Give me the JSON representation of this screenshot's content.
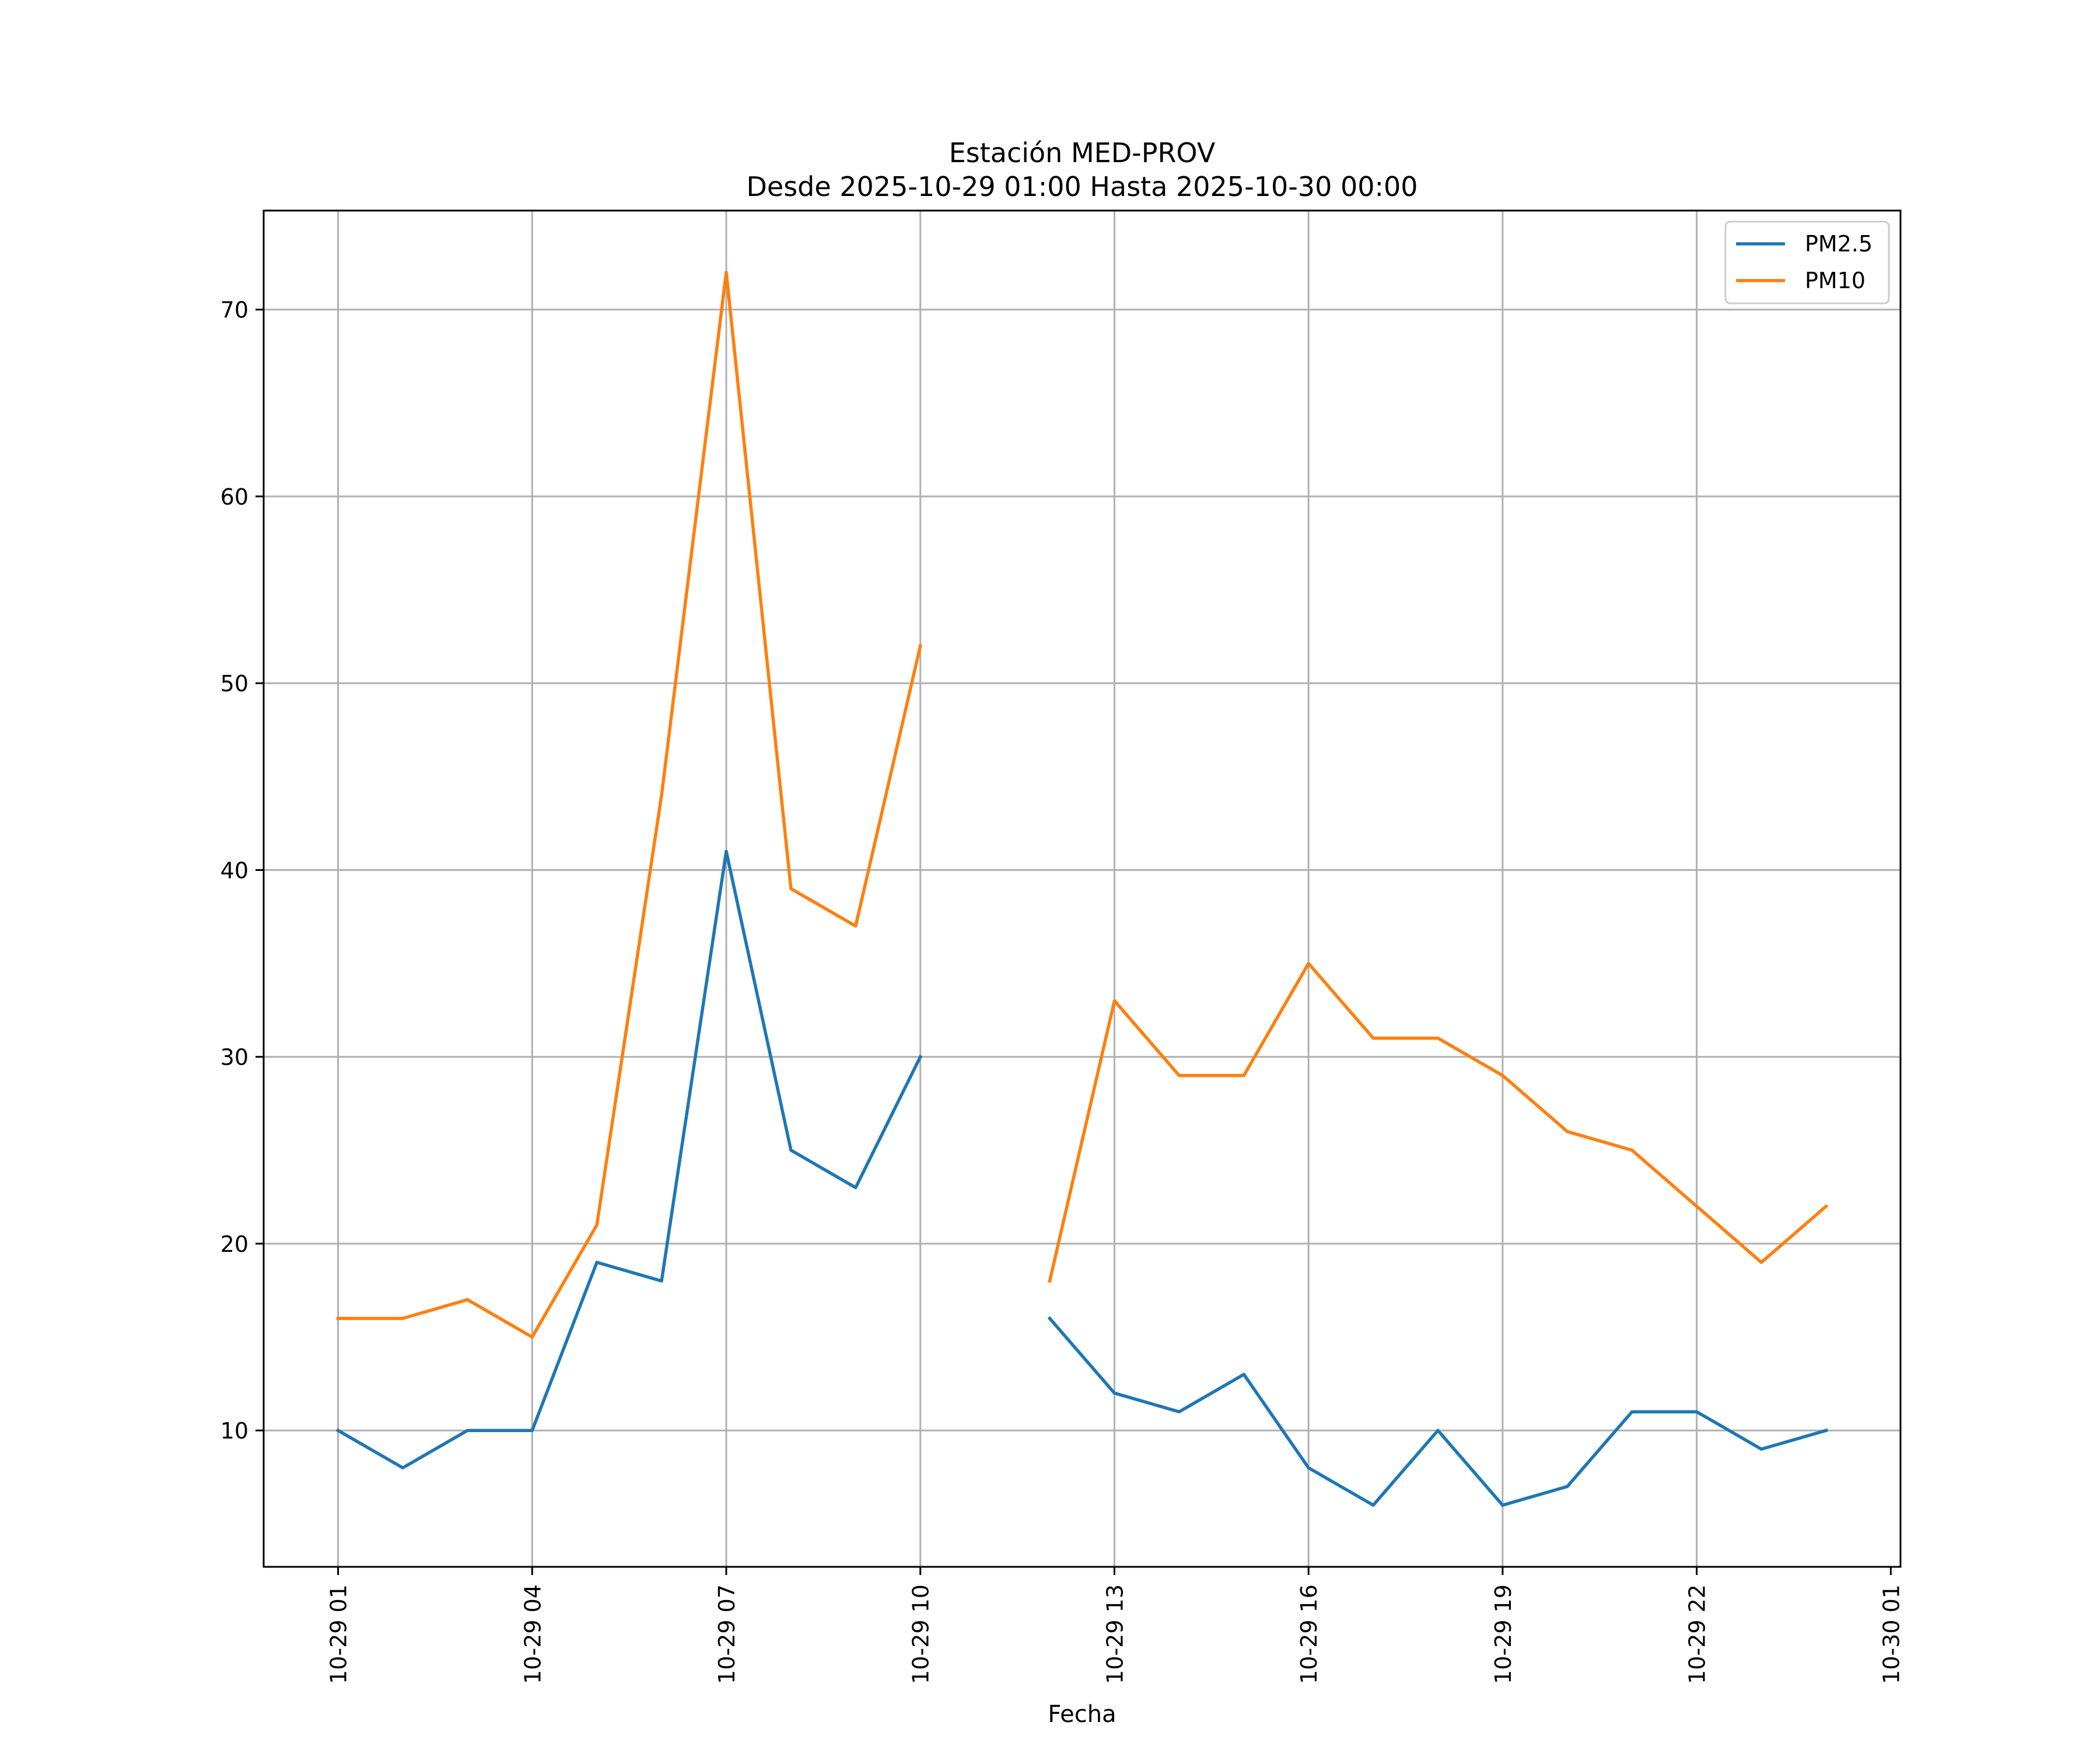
{
  "chart_data": {
    "type": "line",
    "title": "Estación MED-PROV",
    "subtitle": "Desde 2025-10-29 01:00 Hasta 2025-10-30 00:00",
    "xlabel": "Fecha",
    "ylabel": "",
    "x_hours": [
      1,
      2,
      3,
      4,
      5,
      6,
      7,
      8,
      9,
      10,
      11,
      12,
      13,
      14,
      15,
      16,
      17,
      18,
      19,
      20,
      21,
      22,
      23,
      24
    ],
    "x_ticks": [
      {
        "hour": 1,
        "label": "10-29 01"
      },
      {
        "hour": 4,
        "label": "10-29 04"
      },
      {
        "hour": 7,
        "label": "10-29 07"
      },
      {
        "hour": 10,
        "label": "10-29 10"
      },
      {
        "hour": 13,
        "label": "10-29 13"
      },
      {
        "hour": 16,
        "label": "10-29 16"
      },
      {
        "hour": 19,
        "label": "10-29 19"
      },
      {
        "hour": 22,
        "label": "10-29 22"
      },
      {
        "hour": 25,
        "label": "10-30 01"
      }
    ],
    "xlim": [
      -0.15,
      25.15
    ],
    "ylim": [
      2.7,
      75.3
    ],
    "y_ticks": [
      10,
      20,
      30,
      40,
      50,
      60,
      70
    ],
    "grid": true,
    "legend_position": "top-right",
    "series": [
      {
        "name": "PM2.5",
        "color": "#1f77b4",
        "values": [
          10,
          8,
          10,
          10,
          19,
          18,
          41,
          25,
          23,
          30,
          null,
          16,
          12,
          11,
          13,
          8,
          6,
          10,
          6,
          7,
          11,
          11,
          9,
          10
        ]
      },
      {
        "name": "PM10",
        "color": "#ff7f0e",
        "values": [
          16,
          16,
          17,
          15,
          21,
          44,
          72,
          39,
          37,
          52,
          null,
          18,
          33,
          29,
          29,
          35,
          31,
          31,
          29,
          26,
          25,
          22,
          19,
          22
        ]
      }
    ]
  }
}
